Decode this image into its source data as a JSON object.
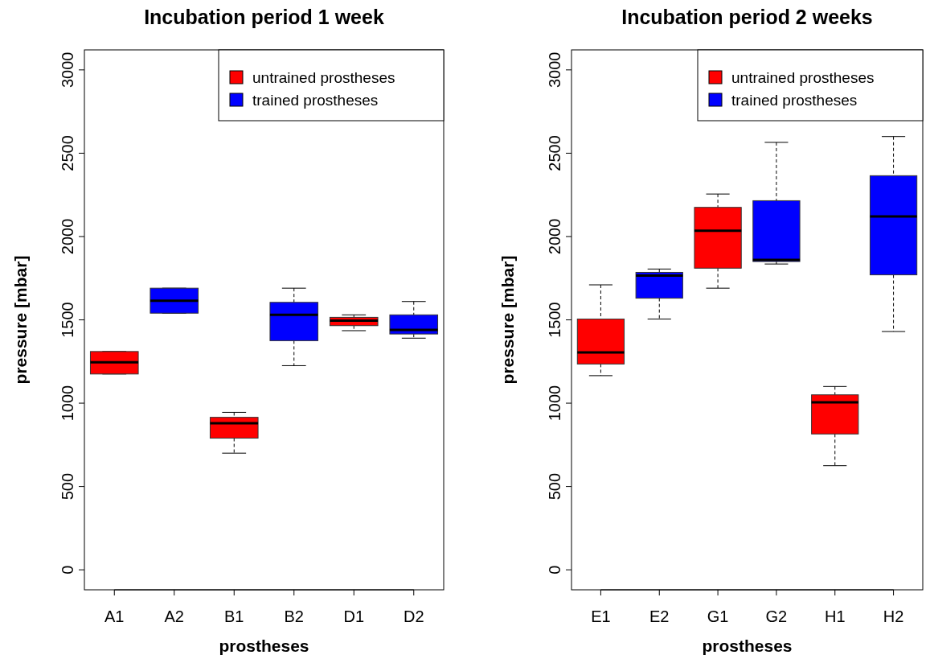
{
  "chart_data": [
    {
      "type": "box",
      "title": "Incubation period 1 week",
      "xlabel": "prostheses",
      "ylabel": "pressure [mbar]",
      "categories": [
        "A1",
        "A2",
        "B1",
        "B2",
        "D1",
        "D2"
      ],
      "ylim": [
        -120,
        3120
      ],
      "yticks": [
        0,
        500,
        1000,
        1500,
        2000,
        2500,
        3000
      ],
      "legend": "top right",
      "series": [
        {
          "name": "untrained prostheses",
          "color": "#ff0000",
          "boxes": [
            {
              "low": 1175,
              "q1": 1175,
              "median": 1245,
              "q3": 1310,
              "high": 1310
            },
            null,
            {
              "low": 700,
              "q1": 790,
              "median": 880,
              "q3": 915,
              "high": 945
            },
            null,
            {
              "low": 1435,
              "q1": 1465,
              "median": 1495,
              "q3": 1515,
              "high": 1530
            },
            null
          ]
        },
        {
          "name": "trained prostheses",
          "color": "#0000ff",
          "boxes": [
            null,
            {
              "low": 1540,
              "q1": 1540,
              "median": 1615,
              "q3": 1690,
              "high": 1690
            },
            null,
            {
              "low": 1225,
              "q1": 1375,
              "median": 1530,
              "q3": 1605,
              "high": 1690
            },
            null,
            {
              "low": 1390,
              "q1": 1415,
              "median": 1440,
              "q3": 1530,
              "high": 1610
            }
          ]
        }
      ]
    },
    {
      "type": "box",
      "title": "Incubation period 2 weeks",
      "xlabel": "prostheses",
      "ylabel": "pressure [mbar]",
      "categories": [
        "E1",
        "E2",
        "G1",
        "G2",
        "H1",
        "H2"
      ],
      "ylim": [
        -120,
        3120
      ],
      "yticks": [
        0,
        500,
        1000,
        1500,
        2000,
        2500,
        3000
      ],
      "legend": "top right",
      "series": [
        {
          "name": "untrained prostheses",
          "color": "#ff0000",
          "boxes": [
            {
              "low": 1165,
              "q1": 1235,
              "median": 1305,
              "q3": 1505,
              "high": 1710
            },
            null,
            {
              "low": 1690,
              "q1": 1810,
              "median": 2035,
              "q3": 2175,
              "high": 2255
            },
            null,
            {
              "low": 625,
              "q1": 815,
              "median": 1005,
              "q3": 1050,
              "high": 1100
            },
            null
          ]
        },
        {
          "name": "trained prostheses",
          "color": "#0000ff",
          "boxes": [
            null,
            {
              "low": 1505,
              "q1": 1630,
              "median": 1765,
              "q3": 1785,
              "high": 1805
            },
            null,
            {
              "low": 1835,
              "q1": 1850,
              "median": 1860,
              "q3": 2215,
              "high": 2565
            },
            null,
            {
              "low": 1430,
              "q1": 1770,
              "median": 2120,
              "q3": 2365,
              "high": 2600
            }
          ]
        }
      ]
    }
  ]
}
